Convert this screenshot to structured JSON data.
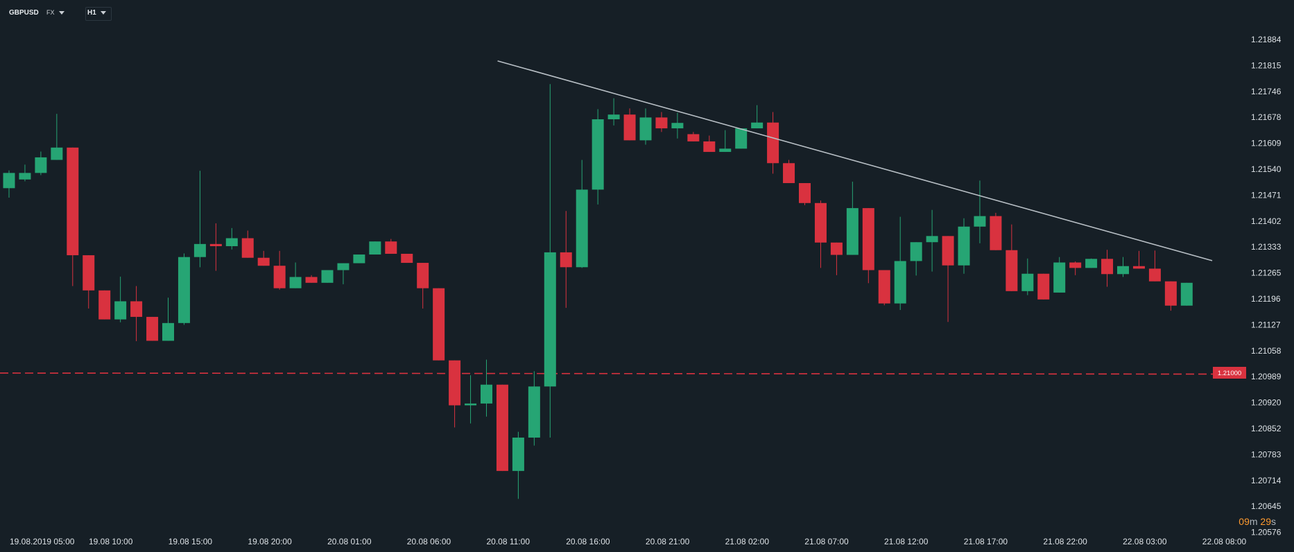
{
  "toolbar": {
    "symbol": "GBPUSD",
    "market": "FX",
    "timeframe": "H1"
  },
  "price_label": "1.21000",
  "timer": {
    "minutes": "09",
    "m": "m",
    "seconds": "29",
    "s": "s"
  },
  "colors": {
    "bull": "#26a574",
    "bear": "#d9323f",
    "background": "#161f26",
    "trendline": "#b9c0c6",
    "hline": "#d9323f"
  },
  "chart_data": {
    "type": "candlestick",
    "y_ticks": [
      "1.21884",
      "1.21815",
      "1.21746",
      "1.21678",
      "1.21609",
      "1.21540",
      "1.21471",
      "1.21402",
      "1.21333",
      "1.21265",
      "1.21196",
      "1.21127",
      "1.21058",
      "1.20989",
      "1.20920",
      "1.20852",
      "1.20783",
      "1.20714",
      "1.20645",
      "1.20576"
    ],
    "ylim": [
      1.2056,
      1.2192
    ],
    "x_ticks": [
      "19.08.2019  05:00",
      "19.08  10:00",
      "19.08  15:00",
      "19.08  20:00",
      "20.08  01:00",
      "20.08  06:00",
      "20.08  11:00",
      "20.08  16:00",
      "20.08  21:00",
      "21.08  02:00",
      "21.08  07:00",
      "21.08  12:00",
      "21.08  17:00",
      "21.08  22:00",
      "22.08  03:00",
      "22.08  08:00"
    ],
    "horizontal_line": 1.21,
    "trendline": {
      "start": [
        30.7,
        1.21861
      ],
      "end": [
        75.6,
        1.2131
      ]
    },
    "candles": [
      [
        1.2151,
        1.21552,
        1.21484,
        1.21559
      ],
      [
        1.21534,
        1.21552,
        1.21529,
        1.21575
      ],
      [
        1.21552,
        1.21595,
        1.21546,
        1.21611
      ],
      [
        1.21588,
        1.21622,
        1.21588,
        1.21715
      ],
      [
        1.21622,
        1.21325,
        1.2124,
        1.21622
      ],
      [
        1.21325,
        1.21228,
        1.21178,
        1.21325
      ],
      [
        1.21228,
        1.21148,
        1.21148,
        1.21228
      ],
      [
        1.21148,
        1.21198,
        1.2114,
        1.21266
      ],
      [
        1.21198,
        1.21155,
        1.21088,
        1.2124
      ],
      [
        1.21155,
        1.21089,
        1.21089,
        1.21155
      ],
      [
        1.21089,
        1.21138,
        1.21089,
        1.21208
      ],
      [
        1.21138,
        1.2132,
        1.21133,
        1.2133
      ],
      [
        1.2132,
        1.21356,
        1.21292,
        1.21558
      ],
      [
        1.21356,
        1.2135,
        1.21282,
        1.21413
      ],
      [
        1.2135,
        1.21372,
        1.21341,
        1.214
      ],
      [
        1.21372,
        1.21318,
        1.21318,
        1.21393
      ],
      [
        1.21318,
        1.21296,
        1.21296,
        1.21337
      ],
      [
        1.21296,
        1.21234,
        1.2123,
        1.21337
      ],
      [
        1.21234,
        1.21265,
        1.21234,
        1.21305
      ],
      [
        1.21265,
        1.21249,
        1.21249,
        1.2127
      ],
      [
        1.21249,
        1.21284,
        1.21249,
        1.21284
      ],
      [
        1.21284,
        1.21303,
        1.21245,
        1.21303
      ],
      [
        1.21303,
        1.21327,
        1.21303,
        1.21327
      ],
      [
        1.21327,
        1.21363,
        1.21327,
        1.21363
      ],
      [
        1.21363,
        1.21329,
        1.21329,
        1.2137
      ],
      [
        1.21329,
        1.21304,
        1.21304,
        1.21329
      ],
      [
        1.21304,
        1.21234,
        1.21178,
        1.21304
      ],
      [
        1.21234,
        1.21035,
        1.21035,
        1.21234
      ],
      [
        1.21035,
        1.20911,
        1.2085,
        1.21035
      ],
      [
        1.20911,
        1.20916,
        1.20861,
        1.20994
      ],
      [
        1.20916,
        1.20968,
        1.2088,
        1.21037
      ],
      [
        1.20968,
        1.2073,
        1.2073,
        1.20968
      ],
      [
        1.2073,
        1.20822,
        1.20653,
        1.20838
      ],
      [
        1.20822,
        1.20963,
        1.208,
        1.21005
      ],
      [
        1.20963,
        1.21333,
        1.20822,
        1.21797
      ],
      [
        1.21333,
        1.21292,
        1.2118,
        1.21447
      ],
      [
        1.21292,
        1.21506,
        1.2129,
        1.21588
      ],
      [
        1.21506,
        1.217,
        1.21465,
        1.21728
      ],
      [
        1.217,
        1.21713,
        1.21683,
        1.21758
      ],
      [
        1.21713,
        1.21642,
        1.21642,
        1.2173
      ],
      [
        1.21642,
        1.21705,
        1.2163,
        1.2173
      ],
      [
        1.21705,
        1.21675,
        1.21665,
        1.2172
      ],
      [
        1.21675,
        1.2169,
        1.21647,
        1.21718
      ],
      [
        1.21659,
        1.21639,
        1.21639,
        1.21665
      ],
      [
        1.21639,
        1.2161,
        1.2161,
        1.21655
      ],
      [
        1.2161,
        1.21619,
        1.2161,
        1.2167
      ],
      [
        1.21619,
        1.21675,
        1.21619,
        1.21675
      ],
      [
        1.21675,
        1.21691,
        1.21675,
        1.21739
      ],
      [
        1.21691,
        1.21579,
        1.2155,
        1.2172
      ],
      [
        1.21579,
        1.21524,
        1.21524,
        1.21588
      ],
      [
        1.21524,
        1.21469,
        1.21463,
        1.21524
      ],
      [
        1.21469,
        1.2136,
        1.2129,
        1.21476
      ],
      [
        1.2136,
        1.21326,
        1.2127,
        1.2136
      ],
      [
        1.21326,
        1.21455,
        1.21326,
        1.21528
      ],
      [
        1.21455,
        1.21284,
        1.21248,
        1.21455
      ],
      [
        1.21284,
        1.21192,
        1.21187,
        1.21284
      ],
      [
        1.21192,
        1.21309,
        1.21174,
        1.21431
      ],
      [
        1.21309,
        1.21361,
        1.21269,
        1.21361
      ],
      [
        1.21361,
        1.21378,
        1.2128,
        1.2145
      ],
      [
        1.21378,
        1.21297,
        1.21141,
        1.21378
      ],
      [
        1.21297,
        1.21404,
        1.21274,
        1.21427
      ],
      [
        1.21404,
        1.21433,
        1.21358,
        1.21531
      ],
      [
        1.21433,
        1.21339,
        1.21339,
        1.21442
      ],
      [
        1.21339,
        1.21226,
        1.21226,
        1.2141
      ],
      [
        1.21226,
        1.21274,
        1.21215,
        1.21316
      ],
      [
        1.21274,
        1.21203,
        1.21203,
        1.21274
      ],
      [
        1.21222,
        1.21305,
        1.21222,
        1.2132
      ],
      [
        1.21305,
        1.2129,
        1.2127,
        1.21308
      ],
      [
        1.2129,
        1.21315,
        1.2129,
        1.21316
      ],
      [
        1.21315,
        1.21273,
        1.21238,
        1.2134
      ],
      [
        1.21273,
        1.21295,
        1.21265,
        1.2132
      ],
      [
        1.21295,
        1.21288,
        1.21288,
        1.21337
      ],
      [
        1.21288,
        1.21253,
        1.21253,
        1.21338
      ],
      [
        1.21253,
        1.21186,
        1.21172,
        1.21253
      ],
      [
        1.21186,
        1.21249,
        1.21186,
        1.21249
      ]
    ]
  }
}
